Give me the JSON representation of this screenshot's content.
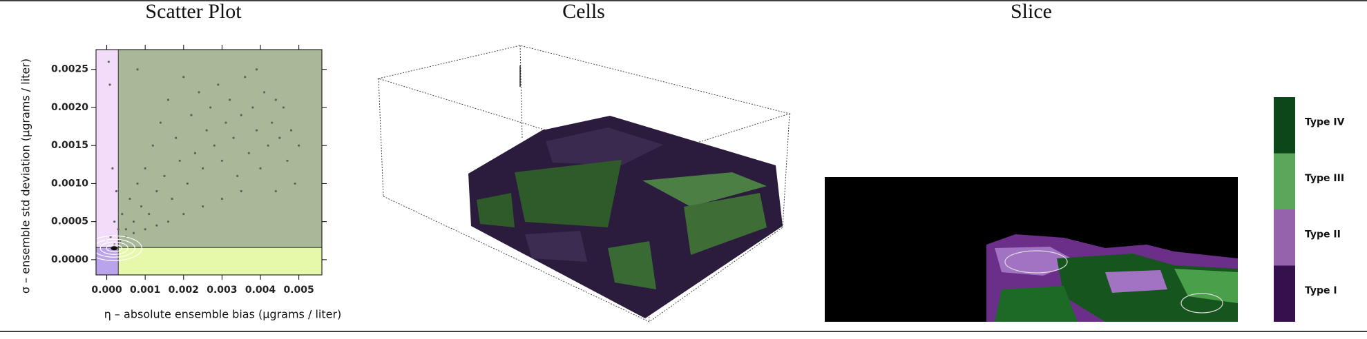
{
  "chart_data": [
    {
      "type": "scatter",
      "title": "Scatter Plot",
      "xlabel": "η – absolute ensemble bias (µgrams / liter)",
      "ylabel": "σ – ensemble std deviation (µgrams / liter)",
      "xlim": [
        -0.00028,
        0.0056
      ],
      "ylim": [
        -0.0002,
        0.00276
      ],
      "xticks": [
        {
          "value": 0,
          "label": "0.000"
        },
        0.001,
        0.002,
        0.003,
        0.004,
        0.005
      ],
      "yticks": [
        {
          "value": 0,
          "label": "0.0000"
        },
        0.0005,
        {
          "value": 0.001,
          "label": "0.0010"
        },
        0.0015,
        {
          "value": 0.002,
          "label": "0.0020"
        },
        0.0025
      ],
      "x_threshold": 0.0003,
      "y_threshold": 0.00016,
      "region_colors": {
        "left": "#f2dcfa",
        "corner": "#b9a3ea",
        "main": "#a8b898",
        "bottom": "#e6f8aa"
      },
      "series": [
        {
          "color": "#5a6658",
          "x": [
            0.0001,
            0.0002,
            0.0003,
            0.0004,
            0.0005,
            0.0006,
            0.0007,
            0.0008,
            0.0009,
            0.001,
            0.0011,
            0.0012,
            0.0013,
            0.0014,
            0.0015,
            0.0016,
            0.0017,
            0.0018,
            0.0019,
            0.002,
            0.0021,
            0.0022,
            0.0023,
            0.0024,
            0.0025,
            0.0026,
            0.0027,
            0.0028,
            0.0029,
            0.003,
            0.0031,
            0.0032,
            0.0033,
            0.0034,
            0.0035,
            0.0036,
            0.0037,
            0.0038,
            0.0039,
            0.004,
            0.0041,
            0.0042,
            0.0043,
            0.0044,
            0.0045,
            0.0046,
            0.0047,
            0.0048,
            0.0049,
            0.005,
            5e-05,
            8e-05,
            0.00015,
            0.00025,
            0.0002,
            0.00035,
            0.0005,
            0.0007,
            0.001,
            0.0013,
            0.0016,
            0.002,
            0.0025,
            0.003,
            0.0035,
            0.0039,
            0.0044,
            0.0008
          ],
          "values": [
            0.0003,
            0.0005,
            0.0004,
            0.0006,
            0.0004,
            0.0008,
            0.0005,
            0.001,
            0.0007,
            0.0012,
            0.0006,
            0.0015,
            0.0009,
            0.0018,
            0.0011,
            0.0021,
            0.0008,
            0.0016,
            0.0013,
            0.0024,
            0.001,
            0.0019,
            0.0014,
            0.0022,
            0.0012,
            0.0017,
            0.002,
            0.0015,
            0.0023,
            0.0013,
            0.0018,
            0.0021,
            0.0016,
            0.0011,
            0.0019,
            0.0024,
            0.0014,
            0.002,
            0.0017,
            0.0012,
            0.0022,
            0.0015,
            0.0018,
            0.0009,
            0.0016,
            0.002,
            0.0013,
            0.0017,
            0.001,
            0.0015,
            0.0026,
            0.0023,
            0.0012,
            0.0009,
            0.0002,
            0.00025,
            0.0003,
            0.00035,
            0.0004,
            0.00045,
            0.0005,
            0.0006,
            0.0007,
            0.0008,
            0.0009,
            0.0025,
            0.0021,
            0.0025
          ]
        }
      ]
    }
  ],
  "panels": {
    "cells": {
      "title": "Cells"
    },
    "slice": {
      "title": "Slice",
      "legend": [
        {
          "label": "Type IV",
          "color": "#0b4718"
        },
        {
          "label": "Type III",
          "color": "#5aa65a"
        },
        {
          "label": "Type II",
          "color": "#9563ab"
        },
        {
          "label": "Type I",
          "color": "#35104c"
        }
      ]
    }
  }
}
